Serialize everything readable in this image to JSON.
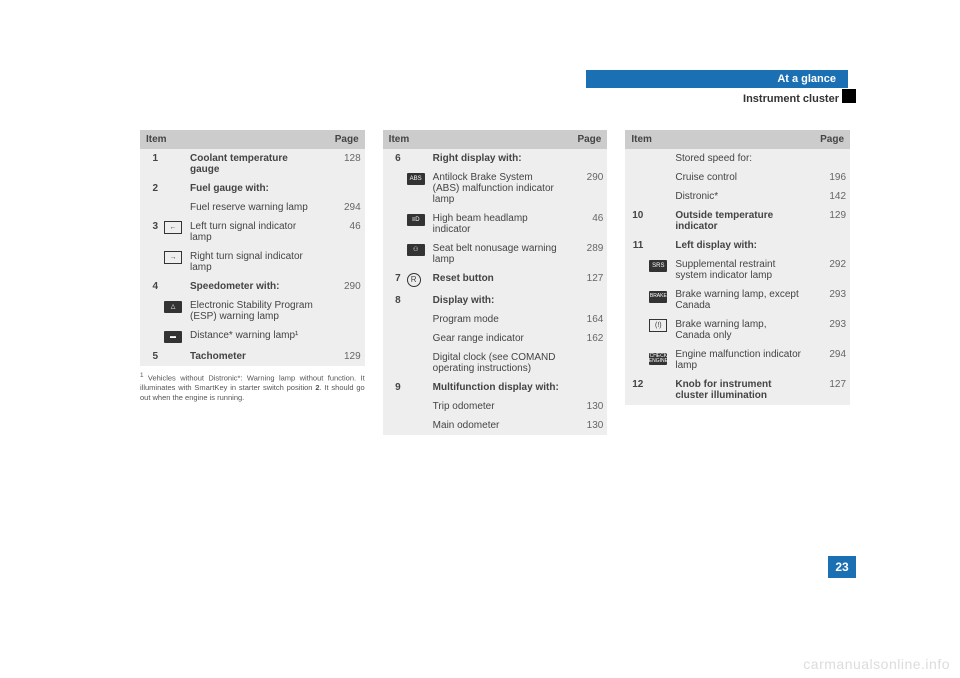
{
  "header": {
    "section": "At a glance",
    "subtitle": "Instrument cluster"
  },
  "pageNumber": "23",
  "watermark": "carmanualsonline.info",
  "table1": {
    "header": {
      "item": "Item",
      "page": "Page"
    },
    "rows": [
      {
        "num": "1",
        "icon": "",
        "label": "Coolant temperature gauge",
        "page": "128",
        "bold": true
      },
      {
        "num": "2",
        "icon": "",
        "label": "Fuel gauge with:",
        "page": "",
        "bold": true
      },
      {
        "num": "",
        "icon": "",
        "label": "Fuel reserve warning lamp",
        "page": "294"
      },
      {
        "num": "3",
        "icon": "←",
        "iconStyle": "outline",
        "label": "Left turn signal indicator lamp",
        "page": "46"
      },
      {
        "num": "",
        "icon": "→",
        "iconStyle": "outline",
        "label": "Right turn signal indicator lamp",
        "page": ""
      },
      {
        "num": "4",
        "icon": "",
        "label": "Speedometer with:",
        "page": "290",
        "bold": true
      },
      {
        "num": "",
        "icon": "△",
        "iconStyle": "box",
        "label": "Electronic Stability Program (ESP) warning lamp",
        "page": ""
      },
      {
        "num": "",
        "icon": "▬",
        "iconStyle": "box",
        "label": "Distance* warning lamp¹",
        "page": ""
      },
      {
        "num": "5",
        "icon": "",
        "label": "Tachometer",
        "page": "129",
        "bold": true
      }
    ]
  },
  "footnote": {
    "sup": "1",
    "text1": "Vehicles without Distronic*: Warning lamp without function. It illuminates with SmartKey in starter switch position ",
    "bold": "2",
    "text2": ". It should go out when the engine is running."
  },
  "table2": {
    "header": {
      "item": "Item",
      "page": "Page"
    },
    "rows": [
      {
        "num": "6",
        "icon": "",
        "label": "Right display with:",
        "page": "",
        "bold": true
      },
      {
        "num": "",
        "icon": "ABS",
        "iconStyle": "box",
        "label": "Antilock Brake System (ABS) malfunction indicator lamp",
        "page": "290"
      },
      {
        "num": "",
        "icon": "≡D",
        "iconStyle": "box",
        "label": "High beam headlamp indicator",
        "page": "46"
      },
      {
        "num": "",
        "icon": "⚇",
        "iconStyle": "box",
        "label": "Seat belt nonusage warning lamp",
        "page": "289"
      },
      {
        "num": "7",
        "icon": "R",
        "iconStyle": "circle",
        "label": "Reset button",
        "page": "127",
        "bold": true
      },
      {
        "num": "8",
        "icon": "",
        "label": "Display with:",
        "page": "",
        "bold": true
      },
      {
        "num": "",
        "icon": "",
        "label": "Program mode",
        "page": "164"
      },
      {
        "num": "",
        "icon": "",
        "label": "Gear range indicator",
        "page": "162"
      },
      {
        "num": "",
        "icon": "",
        "label": "Digital clock (see COMAND operating instructions)",
        "page": ""
      },
      {
        "num": "9",
        "icon": "",
        "label": "Multifunction display with:",
        "page": "",
        "bold": true
      },
      {
        "num": "",
        "icon": "",
        "label": "Trip odometer",
        "page": "130"
      },
      {
        "num": "",
        "icon": "",
        "label": "Main odometer",
        "page": "130"
      }
    ]
  },
  "table3": {
    "header": {
      "item": "Item",
      "page": "Page"
    },
    "rows": [
      {
        "num": "",
        "icon": "",
        "label": "Stored speed for:",
        "page": ""
      },
      {
        "num": "",
        "icon": "",
        "label": "Cruise control",
        "page": "196"
      },
      {
        "num": "",
        "icon": "",
        "label": "Distronic*",
        "page": "142"
      },
      {
        "num": "10",
        "icon": "",
        "label": "Outside temperature indicator",
        "page": "129",
        "bold": true
      },
      {
        "num": "11",
        "icon": "",
        "label": "Left display with:",
        "page": "",
        "bold": true
      },
      {
        "num": "",
        "icon": "SRS",
        "iconStyle": "box",
        "label": "Supplemental restraint system indicator lamp",
        "page": "292"
      },
      {
        "num": "",
        "icon": "BRAKE",
        "iconStyle": "box",
        "label": "Brake warning lamp, except Canada",
        "page": "293"
      },
      {
        "num": "",
        "icon": "(!)",
        "iconStyle": "outline",
        "label": "Brake warning lamp, Canada only",
        "page": "293"
      },
      {
        "num": "",
        "icon": "CHECK ENGINE",
        "iconStyle": "box",
        "label": "Engine malfunction indicator lamp",
        "page": "294"
      },
      {
        "num": "12",
        "icon": "",
        "label": "Knob for instrument cluster illumination",
        "page": "127",
        "bold": true
      }
    ]
  }
}
